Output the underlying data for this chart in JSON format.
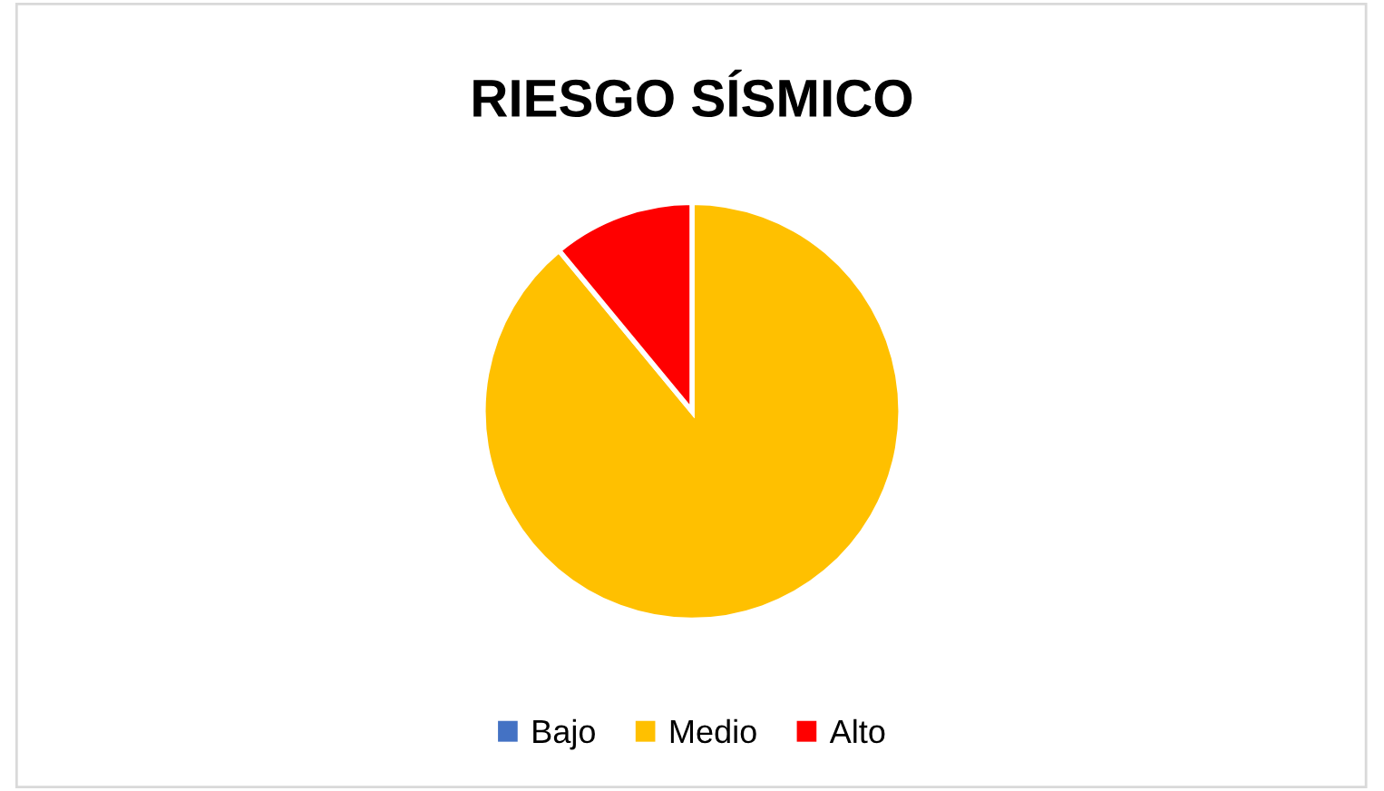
{
  "chart_data": {
    "type": "pie",
    "title": "RIESGO SÍSMICO",
    "categories": [
      "Bajo",
      "Medio",
      "Alto"
    ],
    "values": [
      0,
      89,
      11
    ],
    "colors": [
      "#4472c4",
      "#ffc000",
      "#ff0000"
    ],
    "legend": "bottom"
  }
}
